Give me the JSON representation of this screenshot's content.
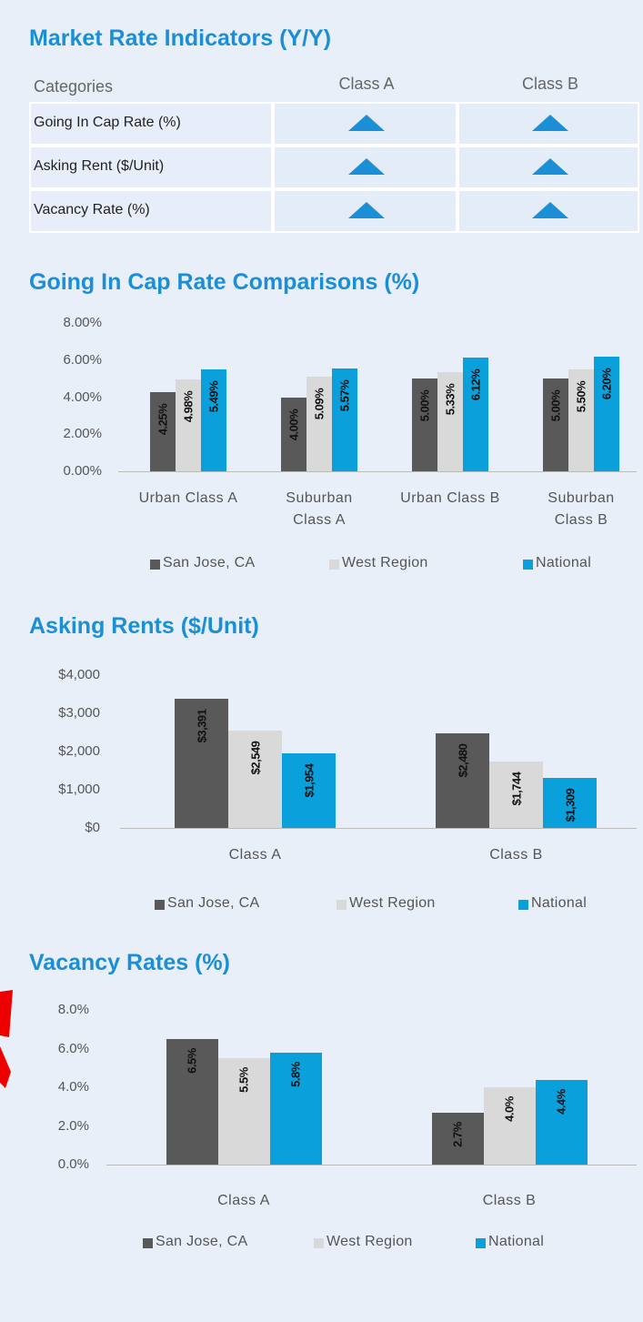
{
  "table": {
    "title": "Market Rate Indicators (Y/Y)",
    "header": [
      "Categories",
      "Class A",
      "Class B"
    ],
    "rows": [
      "Going In Cap Rate (%)",
      "Asking Rent ($/Unit)",
      "Vacancy Rate (%)"
    ]
  },
  "chart_data": [
    {
      "type": "bar",
      "title": "Going In Cap Rate Comparisons (%)",
      "categories": [
        "Urban Class A",
        "Suburban Class A",
        "Urban Class B",
        "Suburban Class B"
      ],
      "series": [
        {
          "name": "San Jose, CA",
          "color": "#595959",
          "values": [
            4.25,
            4.0,
            5.0,
            5.0
          ],
          "value_labels": [
            "4.25%",
            "4.00%",
            "5.00%",
            "5.00%"
          ]
        },
        {
          "name": "West Region",
          "color": "#d9d9d9",
          "values": [
            4.98,
            5.09,
            5.33,
            5.5
          ],
          "value_labels": [
            "4.98%",
            "5.09%",
            "5.33%",
            "5.50%"
          ]
        },
        {
          "name": "National",
          "color": "#0aa0dc",
          "values": [
            5.49,
            5.57,
            6.12,
            6.2
          ],
          "value_labels": [
            "5.49%",
            "5.57%",
            "6.12%",
            "6.20%"
          ]
        }
      ],
      "ylim": [
        0,
        8
      ],
      "yticks": [
        {
          "value": 0,
          "label": "0.00%"
        },
        {
          "value": 2,
          "label": "2.00%"
        },
        {
          "value": 4,
          "label": "4.00%"
        },
        {
          "value": 6,
          "label": "6.00%"
        },
        {
          "value": 8,
          "label": "8.00%"
        }
      ],
      "legend": "bottom"
    },
    {
      "type": "bar",
      "title": "Asking Rents ($/Unit)",
      "categories": [
        "Class A",
        "Class B"
      ],
      "series": [
        {
          "name": "San Jose, CA",
          "color": "#595959",
          "values": [
            3391,
            2480
          ],
          "value_labels": [
            "$3,391",
            "$2,480"
          ]
        },
        {
          "name": "West Region",
          "color": "#d9d9d9",
          "values": [
            2549,
            1744
          ],
          "value_labels": [
            "$2,549",
            "$1,744"
          ]
        },
        {
          "name": "National",
          "color": "#0aa0dc",
          "values": [
            1954,
            1309
          ],
          "value_labels": [
            "$1,954",
            "$1,309"
          ]
        }
      ],
      "ylim": [
        0,
        4000
      ],
      "yticks": [
        {
          "value": 0,
          "label": "$0"
        },
        {
          "value": 1000,
          "label": "$1,000"
        },
        {
          "value": 2000,
          "label": "$2,000"
        },
        {
          "value": 3000,
          "label": "$3,000"
        },
        {
          "value": 4000,
          "label": "$4,000"
        }
      ],
      "legend": "bottom"
    },
    {
      "type": "bar",
      "title": "Vacancy Rates (%)",
      "categories": [
        "Class A",
        "Class B"
      ],
      "series": [
        {
          "name": "San Jose, CA",
          "color": "#595959",
          "values": [
            6.5,
            2.7
          ],
          "value_labels": [
            "6.5%",
            "2.7%"
          ]
        },
        {
          "name": "West Region",
          "color": "#d9d9d9",
          "values": [
            5.5,
            4.0
          ],
          "value_labels": [
            "5.5%",
            "4.0%"
          ]
        },
        {
          "name": "National",
          "color": "#0aa0dc",
          "values": [
            5.8,
            4.4
          ],
          "value_labels": [
            "5.8%",
            "4.4%"
          ]
        }
      ],
      "ylim": [
        0,
        8
      ],
      "yticks": [
        {
          "value": 0,
          "label": "0.0%"
        },
        {
          "value": 2,
          "label": "2.0%"
        },
        {
          "value": 4,
          "label": "4.0%"
        },
        {
          "value": 6,
          "label": "6.0%"
        },
        {
          "value": 8,
          "label": "8.0%"
        }
      ],
      "legend": "bottom"
    }
  ]
}
